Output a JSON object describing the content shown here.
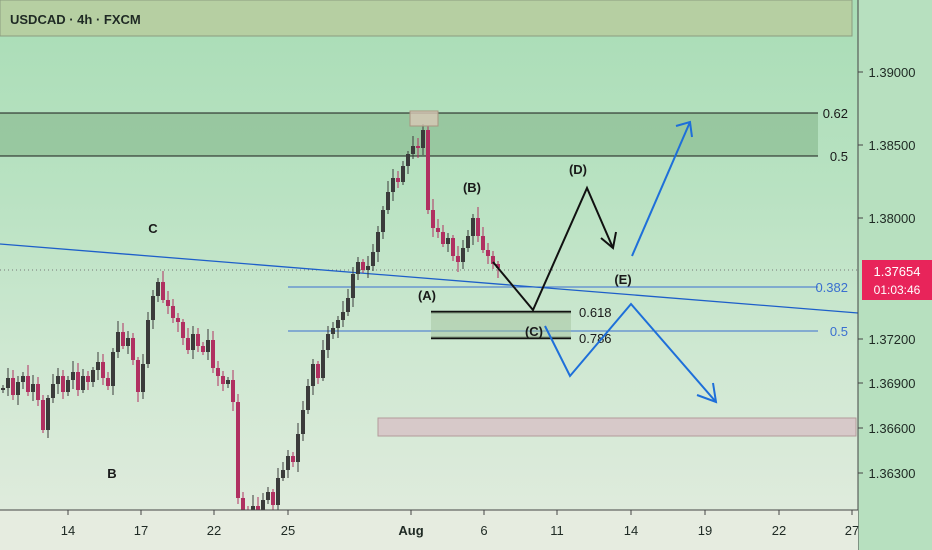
{
  "header": {
    "title": "USDCAD · 4h · FXCM"
  },
  "colors": {
    "bull": "#3b3b3b",
    "bear": "#b03061",
    "wave_black": "#111111",
    "wave_blue": "#1e6fd9",
    "trend_line": "#1e5fc9",
    "fib_blue": "#3a6fd0",
    "price_badge": "#e8245a",
    "supply_zone": "#8fbf96",
    "demand_zone": "#d7c9c9"
  },
  "chart_data": {
    "type": "candlestick",
    "symbol": "USDCAD",
    "timeframe": "4h",
    "source": "FXCM",
    "y_axis": {
      "min": 1.361,
      "max": 1.3943,
      "ticks": [
        "1.39000",
        "1.38500",
        "1.38000",
        "1.37200",
        "1.36900",
        "1.36600",
        "1.36300"
      ],
      "tick_values": [
        1.39,
        1.385,
        1.38,
        1.372,
        1.369,
        1.366,
        1.363
      ]
    },
    "x_axis": {
      "labels": [
        "14",
        "17",
        "22",
        "25",
        "Aug",
        "6",
        "11",
        "14",
        "19",
        "22",
        "27"
      ],
      "bold_label": "Aug"
    },
    "last_price": {
      "value": "1.37654",
      "countdown": "01:03:46"
    },
    "horizontal_levels": [
      {
        "label": "0.62",
        "price": 1.3868
      },
      {
        "label": "0.5",
        "price": 1.3839
      },
      {
        "label": "0.382",
        "price": 1.3748
      },
      {
        "label": "0.5",
        "price": 1.3728
      }
    ],
    "fib_targets": [
      {
        "label": "0.618",
        "price": 1.3731
      },
      {
        "label": "0.786",
        "price": 1.3713
      }
    ],
    "zones": [
      {
        "name": "supply",
        "price_low": 1.3839,
        "price_high": 1.3868
      },
      {
        "name": "demand",
        "price_low": 1.3659,
        "price_high": 1.3671
      },
      {
        "name": "top-range",
        "price_low": 1.392,
        "price_high": 1.3943
      }
    ],
    "wave_labels": [
      "B",
      "C",
      "(A)",
      "(B)",
      "(C)",
      "(D)",
      "(E)"
    ],
    "candles": []
  }
}
